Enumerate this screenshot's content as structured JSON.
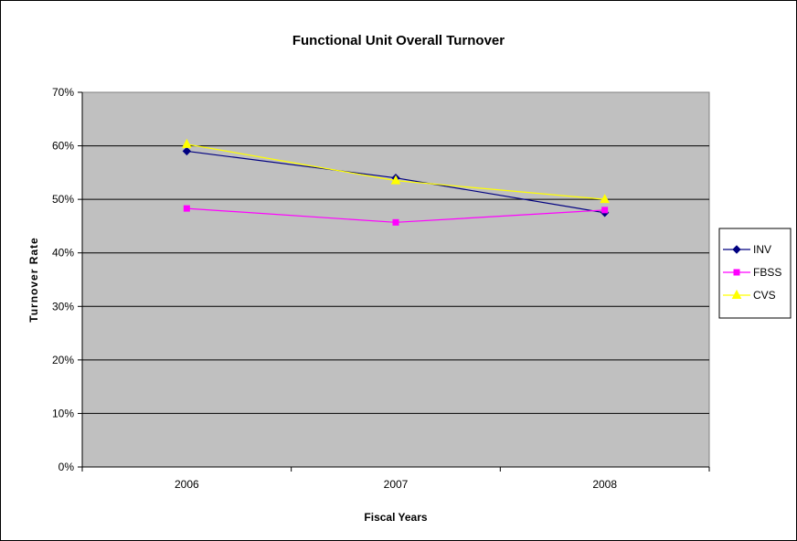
{
  "chart_data": {
    "type": "line",
    "title": "Functional Unit Overall Turnover",
    "xlabel": "Fiscal Years",
    "ylabel": "Turnover Rate",
    "categories": [
      "2006",
      "2007",
      "2008"
    ],
    "ylim": [
      0,
      70
    ],
    "yticks": [
      "0%",
      "10%",
      "20%",
      "30%",
      "40%",
      "50%",
      "60%",
      "70%"
    ],
    "grid": true,
    "legend_position": "right",
    "plot_background": "#c0c0c0",
    "series": [
      {
        "name": "INV",
        "values": [
          59,
          54,
          47.5
        ],
        "color": "#000080",
        "marker": "diamond"
      },
      {
        "name": "FBSS",
        "values": [
          48.3,
          45.7,
          48
        ],
        "color": "#ff00ff",
        "marker": "square"
      },
      {
        "name": "CVS",
        "values": [
          60.3,
          53.5,
          50
        ],
        "color": "#ffff00",
        "marker": "triangle"
      }
    ]
  }
}
